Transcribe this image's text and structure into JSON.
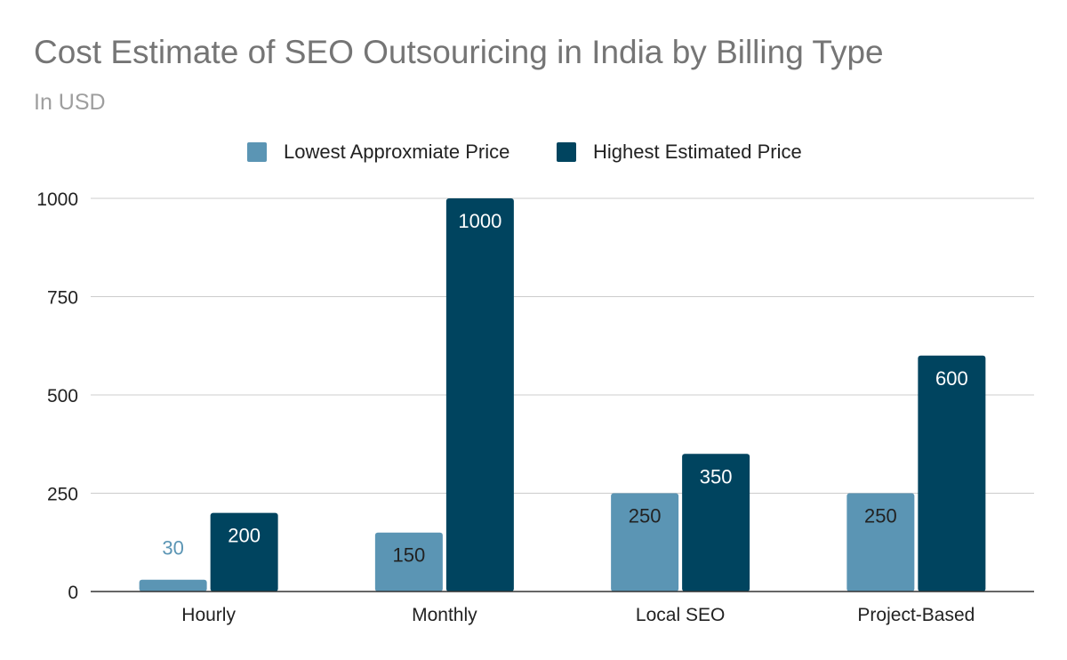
{
  "chart_data": {
    "type": "bar",
    "title": "Cost Estimate of SEO Outsouricing in India by Billing Type",
    "subtitle": "In USD",
    "categories": [
      "Hourly",
      "Monthly",
      "Local SEO",
      "Project-Based"
    ],
    "series": [
      {
        "name": "Lowest Approxmiate Price",
        "color": "#5b95b4",
        "values": [
          30,
          150,
          250,
          250
        ],
        "labels": [
          "30",
          "150",
          "250",
          "250"
        ]
      },
      {
        "name": "Highest Estimated Price",
        "color": "#00445f",
        "values": [
          200,
          1000,
          350,
          600
        ],
        "labels": [
          "200",
          "1000",
          "350",
          "600"
        ]
      }
    ],
    "yticks": [
      0,
      250,
      500,
      750,
      1000
    ],
    "ytick_labels": [
      "0",
      "250",
      "500",
      "750",
      "1000"
    ],
    "ylim": [
      0,
      1000
    ],
    "xlabel": "",
    "ylabel": "",
    "grid": true,
    "legend": "top-center",
    "label_colors": {
      "inside_dark": "#ffffff",
      "inside_light": "#222222",
      "outside": "#5b95b4"
    }
  }
}
